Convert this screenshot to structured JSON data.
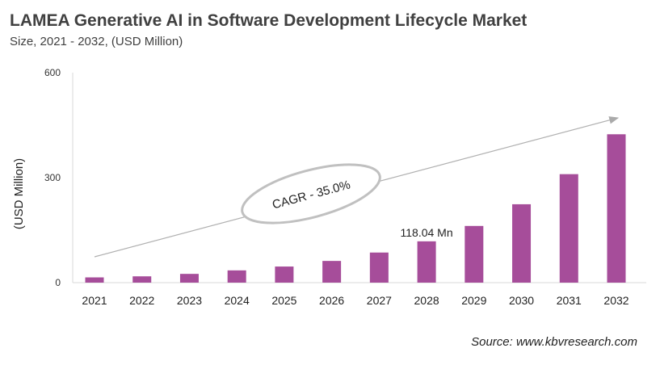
{
  "chart_data": {
    "type": "bar",
    "title": "LAMEA Generative AI in Software Development Lifecycle Market",
    "subtitle": "Size, 2021 - 2032, (USD Million)",
    "xlabel": "",
    "ylabel": "(USD Million)",
    "ylim": [
      0,
      600
    ],
    "yticks": [
      0,
      300,
      600
    ],
    "grid": false,
    "categories": [
      "2021",
      "2022",
      "2023",
      "2024",
      "2025",
      "2026",
      "2027",
      "2028",
      "2029",
      "2030",
      "2031",
      "2032"
    ],
    "values": [
      15,
      18,
      25,
      35,
      46,
      62,
      86,
      118.04,
      162,
      224,
      310,
      424
    ],
    "bar_color": "#A64D9A",
    "data_label": {
      "category": "2028",
      "text": "118.04 Mn"
    },
    "annotation": "CAGR - 35.0%",
    "source": "Source: www.kbvresearch.com"
  }
}
